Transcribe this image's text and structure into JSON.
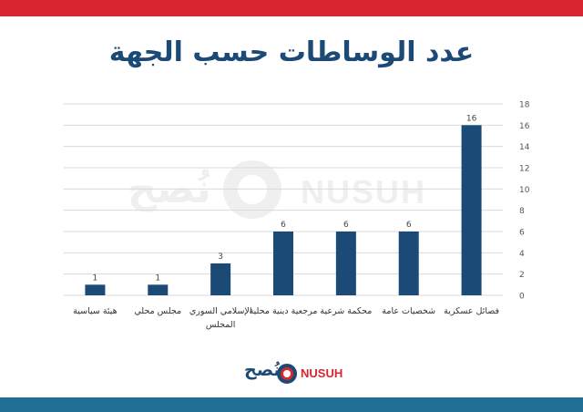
{
  "header": {
    "title": "عدد الوساطات حسب الجهة"
  },
  "watermark": {
    "text_en": "NUSUH",
    "text_ar": "نُصح"
  },
  "logo": {
    "text_en": "NUSUH",
    "text_ar": "نُصح"
  },
  "colors": {
    "bar": "#1c4a76",
    "top_bar": "#d7262f",
    "bottom_bar": "#226f96",
    "grid": "#d9d9d9"
  },
  "chart_data": {
    "type": "bar",
    "categories": [
      "هيئة سياسية",
      "مجلس محلي",
      "المجلس الإسلامي السوري",
      "مرجعية دينية محلية",
      "محكمة شرعية",
      "شخصيات عامة",
      "فصائل عسكرية"
    ],
    "values": [
      1,
      1,
      3,
      6,
      6,
      6,
      16
    ],
    "yticks": [
      0,
      2,
      4,
      6,
      8,
      10,
      12,
      14,
      16,
      18
    ],
    "ylim": [
      0,
      18
    ],
    "y_axis_position": "right",
    "grid": true,
    "legend": "none",
    "data_labels": true
  }
}
